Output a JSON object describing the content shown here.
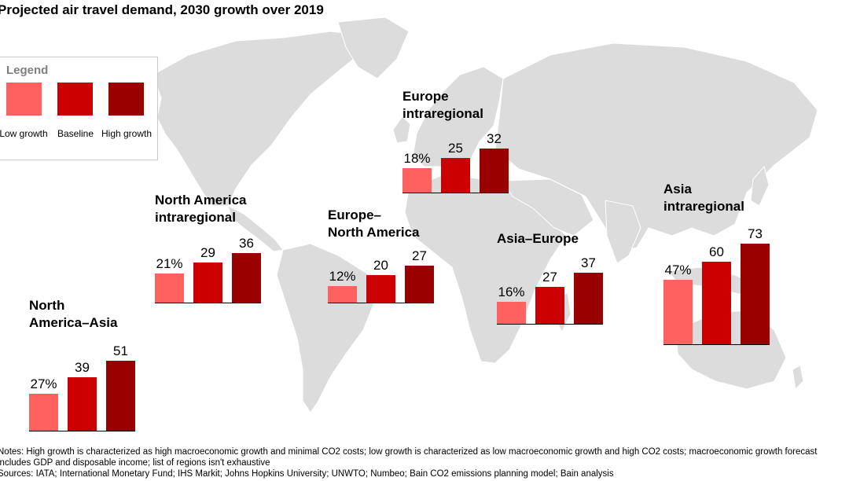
{
  "title": "Projected air travel demand, 2030 growth over 2019",
  "colors": {
    "low": "#ff6160",
    "baseline": "#cc0000",
    "high": "#990000",
    "map": "#dcdcdc"
  },
  "legend": {
    "title": "Legend",
    "items": [
      {
        "key": "low",
        "label": "Low growth"
      },
      {
        "key": "baseline",
        "label": "Baseline"
      },
      {
        "key": "high",
        "label": "High growth"
      }
    ]
  },
  "chart_data": {
    "type": "bar",
    "unit": "%",
    "series_keys": [
      "low",
      "baseline",
      "high"
    ],
    "groups": [
      {
        "id": "north-america-asia",
        "title": [
          "North",
          "America–Asia"
        ],
        "values": [
          27,
          39,
          51
        ],
        "labels": [
          "27%",
          "39",
          "51"
        ]
      },
      {
        "id": "north-america-intraregional",
        "title": [
          "North America",
          "intraregional"
        ],
        "values": [
          21,
          29,
          36
        ],
        "labels": [
          "21%",
          "29",
          "36"
        ]
      },
      {
        "id": "europe-north-america",
        "title": [
          "Europe–",
          "North America"
        ],
        "values": [
          12,
          20,
          27
        ],
        "labels": [
          "12%",
          "20",
          "27"
        ]
      },
      {
        "id": "europe-intraregional",
        "title": [
          "Europe",
          "intraregional"
        ],
        "values": [
          18,
          25,
          32
        ],
        "labels": [
          "18%",
          "25",
          "32"
        ]
      },
      {
        "id": "asia-europe",
        "title": [
          "Asia–Europe"
        ],
        "values": [
          16,
          27,
          37
        ],
        "labels": [
          "16%",
          "27",
          "37"
        ]
      },
      {
        "id": "asia-intraregional",
        "title": [
          "Asia",
          "intraregional"
        ],
        "values": [
          47,
          60,
          73
        ],
        "labels": [
          "47%",
          "60",
          "73"
        ]
      }
    ]
  },
  "notes": {
    "line1": "Notes: High growth is characterized as high macroeconomic growth and minimal CO2 costs; low growth is characterized as low macroeconomic growth and high CO2 costs; macroeconomic growth forecast",
    "line2": "includes GDP and disposable income; list of regions isn't exhaustive",
    "sources": "Sources: IATA; International Monetary Fund; IHS Markit; Johns Hopkins University; UNWTO; Numbeo; Bain CO2 emissions planning model; Bain analysis"
  }
}
